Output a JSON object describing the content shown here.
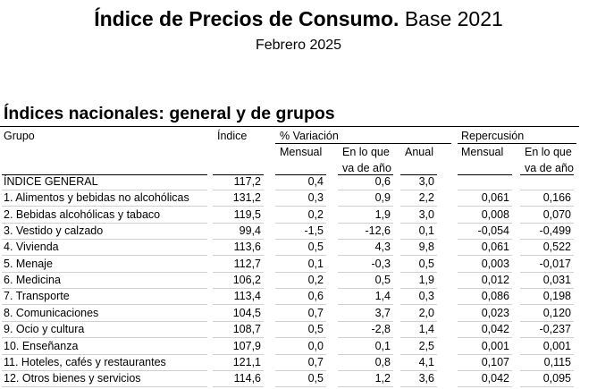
{
  "header": {
    "title_bold": "Índice de Precios de Consumo.",
    "title_rest": "Base 2021",
    "subtitle": "Febrero 2025"
  },
  "section_title": "Índices nacionales: general y de grupos",
  "table": {
    "group_headers": [
      "Grupo",
      "Índice",
      "% Variación",
      "Repercusión"
    ],
    "sub_headers": [
      [
        "Mensual"
      ],
      [
        "En lo que",
        "va de año"
      ],
      [
        "Anual"
      ],
      [
        "Mensual"
      ],
      [
        "En lo que",
        "va de año"
      ]
    ],
    "rows": [
      [
        "ÍNDICE GENERAL",
        "117,2",
        "0,4",
        "0,6",
        "3,0"
      ],
      [
        "1. Alimentos y bebidas no alcohólicas",
        "131,2",
        "0,3",
        "0,9",
        "2,2",
        "0,061",
        "0,166"
      ],
      [
        "2. Bebidas alcohólicas y tabaco",
        "119,5",
        "0,2",
        "1,9",
        "3,0",
        "0,008",
        "0,070"
      ],
      [
        "3. Vestido y calzado",
        "99,4",
        "-1,5",
        "-12,6",
        "0,1",
        "-0,054",
        "-0,499"
      ],
      [
        "4. Vivienda",
        "113,6",
        "0,5",
        "4,3",
        "9,8",
        "0,061",
        "0,522"
      ],
      [
        "5. Menaje",
        "112,7",
        "0,1",
        "-0,3",
        "0,5",
        "0,003",
        "-0,017"
      ],
      [
        "6. Medicina",
        "106,2",
        "0,2",
        "0,5",
        "1,9",
        "0,012",
        "0,031"
      ],
      [
        "7. Transporte",
        "113,4",
        "0,6",
        "1,4",
        "0,3",
        "0,086",
        "0,198"
      ],
      [
        "8. Comunicaciones",
        "104,5",
        "0,7",
        "3,7",
        "2,0",
        "0,023",
        "0,120"
      ],
      [
        "9. Ocio y cultura",
        "108,7",
        "0,5",
        "-2,8",
        "1,4",
        "0,042",
        "-0,237"
      ],
      [
        "10. Enseñanza",
        "107,9",
        "0,0",
        "0,1",
        "2,5",
        "0,001",
        "0,001"
      ],
      [
        "11. Hoteles, cafés y restaurantes",
        "121,1",
        "0,7",
        "0,8",
        "4,1",
        "0,107",
        "0,115"
      ],
      [
        "12. Otros bienes y servicios",
        "114,6",
        "0,5",
        "1,2",
        "3,6",
        "0,042",
        "0,095"
      ]
    ]
  }
}
